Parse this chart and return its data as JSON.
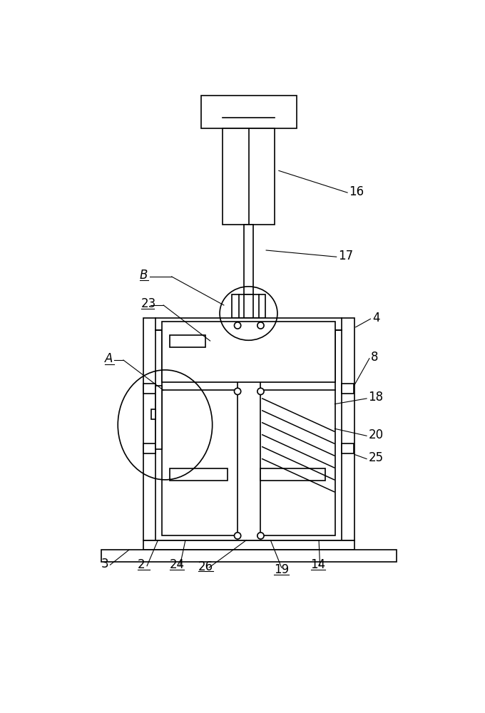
{
  "bg_color": "#ffffff",
  "line_color": "#000000",
  "lw": 1.2,
  "alw": 0.8,
  "fig_width": 6.8,
  "fig_height": 10.0
}
